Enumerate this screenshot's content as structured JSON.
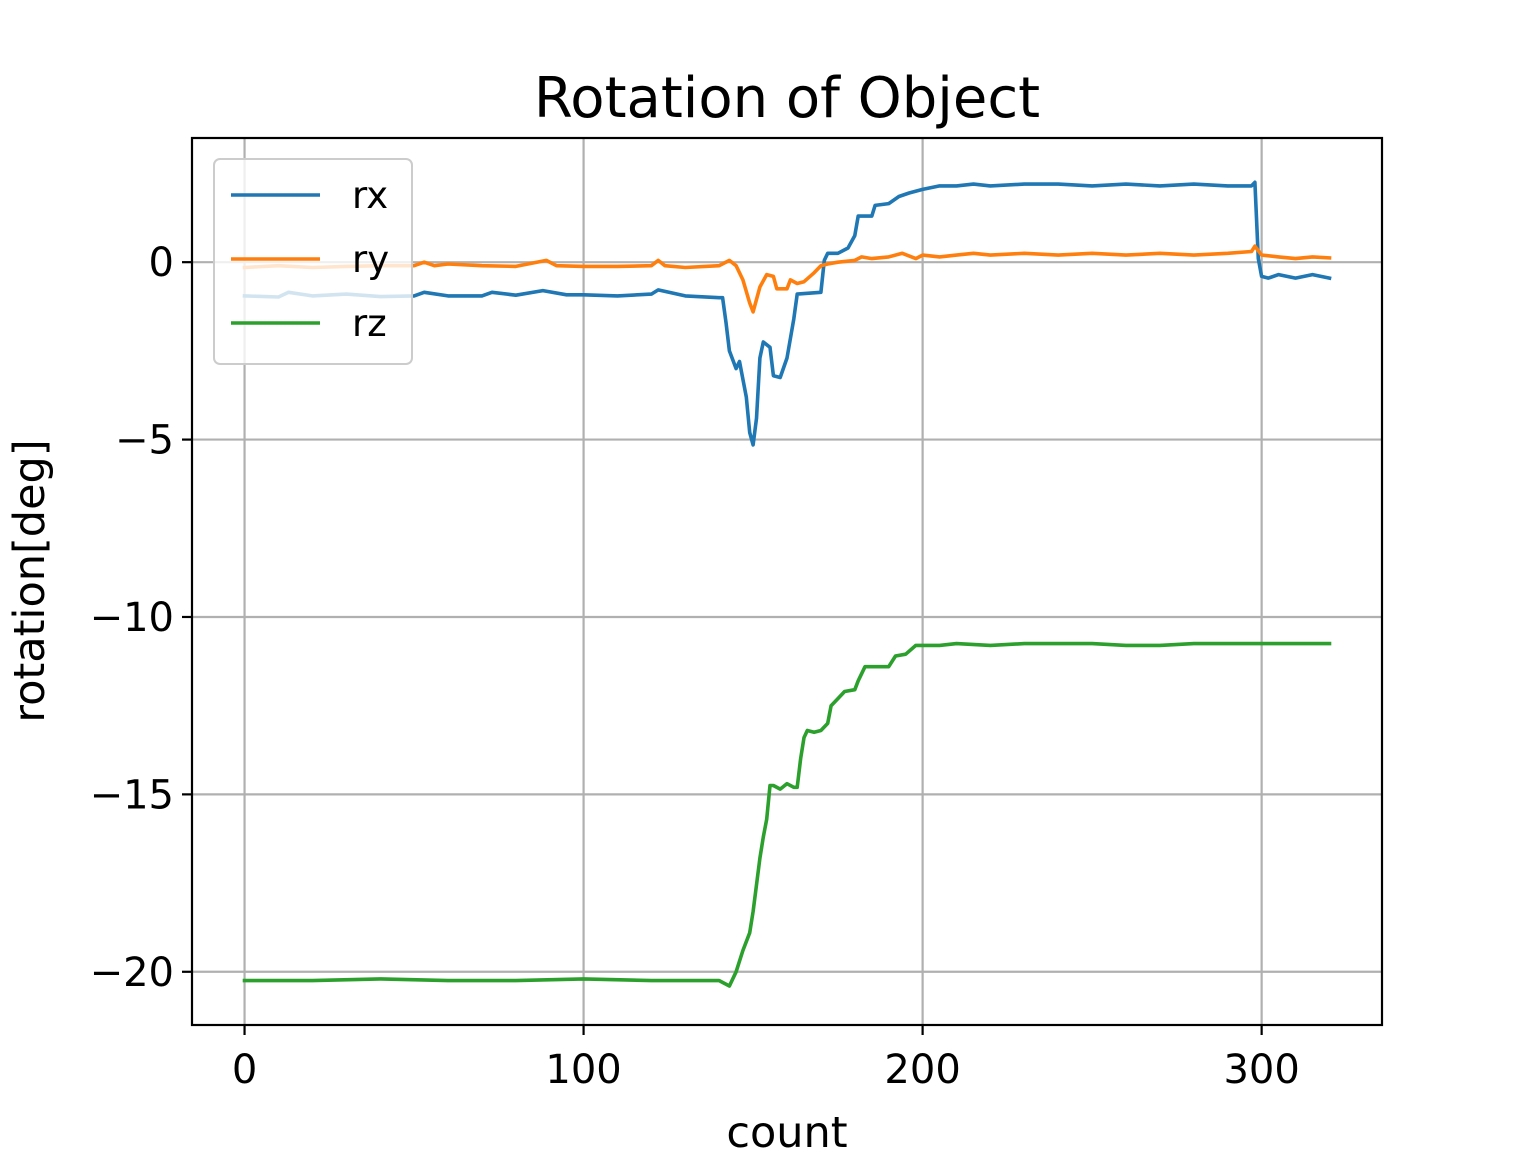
{
  "chart_data": {
    "type": "line",
    "title": "Rotation of Object",
    "xlabel": "count",
    "ylabel": "rotation[deg]",
    "xlim": [
      -15.5,
      335.5
    ],
    "ylim": [
      -21.5,
      3.5
    ],
    "xticks": [
      0,
      100,
      200,
      300
    ],
    "yticks": [
      0,
      -5,
      -10,
      -15,
      -20
    ],
    "xtick_labels": [
      "0",
      "100",
      "200",
      "300"
    ],
    "ytick_labels": [
      "0",
      "−5",
      "−10",
      "−15",
      "−20"
    ],
    "grid": true,
    "legend": {
      "position": "upper left"
    },
    "series": [
      {
        "name": "rx",
        "color": "#1f77b4",
        "points": [
          [
            0,
            -0.95
          ],
          [
            10,
            -0.98
          ],
          [
            13,
            -0.85
          ],
          [
            20,
            -0.95
          ],
          [
            30,
            -0.9
          ],
          [
            40,
            -0.97
          ],
          [
            50,
            -0.95
          ],
          [
            53,
            -0.85
          ],
          [
            60,
            -0.95
          ],
          [
            70,
            -0.95
          ],
          [
            73,
            -0.85
          ],
          [
            80,
            -0.93
          ],
          [
            88,
            -0.8
          ],
          [
            95,
            -0.92
          ],
          [
            100,
            -0.92
          ],
          [
            110,
            -0.95
          ],
          [
            120,
            -0.9
          ],
          [
            122,
            -0.78
          ],
          [
            130,
            -0.95
          ],
          [
            140,
            -1.0
          ],
          [
            141,
            -1.0
          ],
          [
            142,
            -1.7
          ],
          [
            143,
            -2.5
          ],
          [
            145,
            -3.0
          ],
          [
            146,
            -2.8
          ],
          [
            148,
            -3.8
          ],
          [
            149,
            -4.8
          ],
          [
            150,
            -5.15
          ],
          [
            151,
            -4.4
          ],
          [
            152,
            -2.7
          ],
          [
            153,
            -2.25
          ],
          [
            155,
            -2.4
          ],
          [
            156,
            -3.2
          ],
          [
            158,
            -3.25
          ],
          [
            160,
            -2.7
          ],
          [
            162,
            -1.6
          ],
          [
            163,
            -0.9
          ],
          [
            170,
            -0.85
          ],
          [
            171,
            0.05
          ],
          [
            172,
            0.25
          ],
          [
            175,
            0.25
          ],
          [
            178,
            0.4
          ],
          [
            180,
            0.75
          ],
          [
            181,
            1.3
          ],
          [
            185,
            1.3
          ],
          [
            186,
            1.6
          ],
          [
            190,
            1.65
          ],
          [
            193,
            1.85
          ],
          [
            196,
            1.95
          ],
          [
            200,
            2.05
          ],
          [
            205,
            2.15
          ],
          [
            210,
            2.15
          ],
          [
            215,
            2.2
          ],
          [
            220,
            2.15
          ],
          [
            230,
            2.2
          ],
          [
            240,
            2.2
          ],
          [
            250,
            2.15
          ],
          [
            260,
            2.2
          ],
          [
            270,
            2.15
          ],
          [
            280,
            2.2
          ],
          [
            290,
            2.15
          ],
          [
            297,
            2.15
          ],
          [
            298,
            2.25
          ],
          [
            299,
            0.1
          ],
          [
            300,
            -0.4
          ],
          [
            302,
            -0.45
          ],
          [
            305,
            -0.35
          ],
          [
            310,
            -0.45
          ],
          [
            315,
            -0.35
          ],
          [
            320,
            -0.45
          ]
        ]
      },
      {
        "name": "ry",
        "color": "#ff7f0e",
        "points": [
          [
            0,
            -0.15
          ],
          [
            10,
            -0.1
          ],
          [
            20,
            -0.15
          ],
          [
            30,
            -0.12
          ],
          [
            40,
            -0.1
          ],
          [
            50,
            -0.1
          ],
          [
            53,
            0.0
          ],
          [
            56,
            -0.1
          ],
          [
            60,
            -0.05
          ],
          [
            70,
            -0.1
          ],
          [
            80,
            -0.12
          ],
          [
            89,
            0.05
          ],
          [
            92,
            -0.1
          ],
          [
            100,
            -0.12
          ],
          [
            110,
            -0.12
          ],
          [
            120,
            -0.1
          ],
          [
            122,
            0.05
          ],
          [
            124,
            -0.1
          ],
          [
            130,
            -0.15
          ],
          [
            140,
            -0.1
          ],
          [
            143,
            0.05
          ],
          [
            145,
            -0.1
          ],
          [
            147,
            -0.5
          ],
          [
            149,
            -1.15
          ],
          [
            150,
            -1.4
          ],
          [
            152,
            -0.7
          ],
          [
            154,
            -0.35
          ],
          [
            156,
            -0.4
          ],
          [
            157,
            -0.75
          ],
          [
            160,
            -0.75
          ],
          [
            161,
            -0.5
          ],
          [
            163,
            -0.6
          ],
          [
            165,
            -0.55
          ],
          [
            168,
            -0.3
          ],
          [
            170,
            -0.1
          ],
          [
            172,
            -0.05
          ],
          [
            175,
            0.0
          ],
          [
            180,
            0.05
          ],
          [
            182,
            0.15
          ],
          [
            185,
            0.1
          ],
          [
            190,
            0.15
          ],
          [
            194,
            0.25
          ],
          [
            198,
            0.1
          ],
          [
            200,
            0.2
          ],
          [
            205,
            0.15
          ],
          [
            210,
            0.2
          ],
          [
            215,
            0.25
          ],
          [
            220,
            0.2
          ],
          [
            230,
            0.25
          ],
          [
            240,
            0.2
          ],
          [
            250,
            0.25
          ],
          [
            260,
            0.2
          ],
          [
            270,
            0.25
          ],
          [
            280,
            0.2
          ],
          [
            290,
            0.25
          ],
          [
            297,
            0.3
          ],
          [
            298,
            0.45
          ],
          [
            300,
            0.2
          ],
          [
            305,
            0.15
          ],
          [
            310,
            0.1
          ],
          [
            315,
            0.15
          ],
          [
            320,
            0.12
          ]
        ]
      },
      {
        "name": "rz",
        "color": "#2ca02c",
        "points": [
          [
            0,
            -20.25
          ],
          [
            20,
            -20.25
          ],
          [
            40,
            -20.2
          ],
          [
            60,
            -20.25
          ],
          [
            80,
            -20.25
          ],
          [
            100,
            -20.2
          ],
          [
            120,
            -20.25
          ],
          [
            140,
            -20.25
          ],
          [
            143,
            -20.4
          ],
          [
            145,
            -20.0
          ],
          [
            147,
            -19.4
          ],
          [
            149,
            -18.9
          ],
          [
            150,
            -18.3
          ],
          [
            152,
            -16.8
          ],
          [
            153,
            -16.2
          ],
          [
            154,
            -15.7
          ],
          [
            155,
            -14.75
          ],
          [
            156,
            -14.75
          ],
          [
            158,
            -14.85
          ],
          [
            160,
            -14.7
          ],
          [
            162,
            -14.8
          ],
          [
            163,
            -14.8
          ],
          [
            164,
            -14.0
          ],
          [
            165,
            -13.4
          ],
          [
            166,
            -13.2
          ],
          [
            168,
            -13.25
          ],
          [
            170,
            -13.2
          ],
          [
            172,
            -13.0
          ],
          [
            173,
            -12.5
          ],
          [
            175,
            -12.3
          ],
          [
            177,
            -12.1
          ],
          [
            180,
            -12.05
          ],
          [
            181,
            -11.8
          ],
          [
            183,
            -11.4
          ],
          [
            186,
            -11.4
          ],
          [
            190,
            -11.4
          ],
          [
            192,
            -11.1
          ],
          [
            195,
            -11.05
          ],
          [
            198,
            -10.8
          ],
          [
            200,
            -10.8
          ],
          [
            205,
            -10.8
          ],
          [
            210,
            -10.75
          ],
          [
            220,
            -10.8
          ],
          [
            230,
            -10.75
          ],
          [
            240,
            -10.75
          ],
          [
            250,
            -10.75
          ],
          [
            260,
            -10.8
          ],
          [
            270,
            -10.8
          ],
          [
            280,
            -10.75
          ],
          [
            290,
            -10.75
          ],
          [
            300,
            -10.75
          ],
          [
            310,
            -10.75
          ],
          [
            320,
            -10.75
          ]
        ]
      }
    ]
  }
}
